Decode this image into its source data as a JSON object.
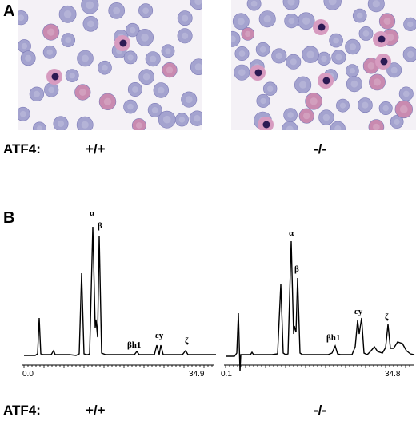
{
  "figure": {
    "panel_a": {
      "letter": "A",
      "row_label": "ATF4:",
      "genotypes": [
        "+/+",
        "-/-"
      ],
      "palette": {
        "rbc": "#a4a3cf",
        "rbc_pink": "#c98ab0",
        "nucleus": "#2c1a54",
        "reticulocyte": "#d79bc0"
      }
    },
    "panel_b": {
      "letter": "B",
      "row_label": "ATF4:",
      "genotypes": [
        "+/+",
        "-/-"
      ],
      "chromatograms": [
        {
          "axis_start": "0.0",
          "axis_end": "34.9",
          "peak_labels": [
            "α",
            "β",
            "βh1",
            "εy",
            "ζ"
          ]
        },
        {
          "axis_start": "0.1",
          "axis_end": "34.8",
          "peak_labels": [
            "α",
            "β",
            "βh1",
            "εy",
            "ζ"
          ]
        }
      ]
    }
  }
}
